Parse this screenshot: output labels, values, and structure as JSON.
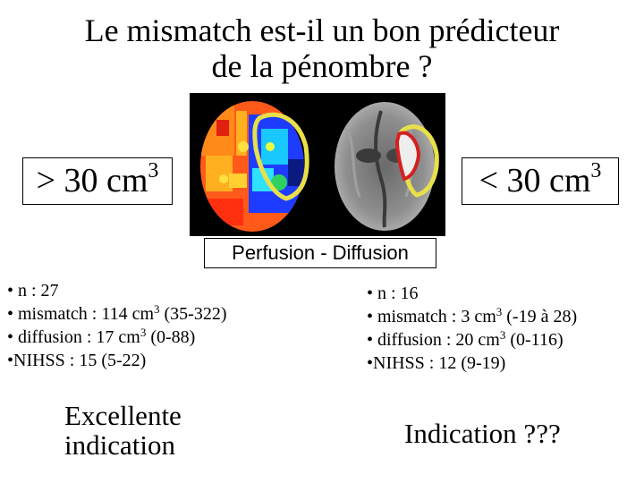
{
  "title": {
    "line1": "Le mismatch est-il un bon prédicteur",
    "line2": "de la pénombre ?"
  },
  "left_box": {
    "text": "> 30 cm",
    "sup": "3"
  },
  "right_box": {
    "text": "< 30 cm",
    "sup": "3"
  },
  "image_caption": "Perfusion - Diffusion",
  "left_stats": {
    "n": "• n : 27",
    "mismatch": "• mismatch : 114 cm",
    "mismatch_sup": "3",
    "mismatch_rest": " (35-322)",
    "diffusion": "• diffusion : 17 cm",
    "diffusion_sup": "3",
    "diffusion_rest": " (0-88)",
    "nihss": "•NIHSS : 15 (5-22)"
  },
  "right_stats": {
    "n": "• n : 16",
    "mismatch": "• mismatch : 3 cm",
    "mismatch_sup": "3",
    "mismatch_rest": " (-19 à 28)",
    "diffusion": "• diffusion : 20 cm",
    "diffusion_sup": "3",
    "diffusion_rest": " (0-116)",
    "nihss": "•NIHSS : 12 (9-19)"
  },
  "left_conclusion": {
    "line1": "Excellente",
    "line2": "indication"
  },
  "right_conclusion": "Indication ???",
  "colors": {
    "lesion_outline": "#e8e04a",
    "diffusion_outline": "#d42020"
  }
}
